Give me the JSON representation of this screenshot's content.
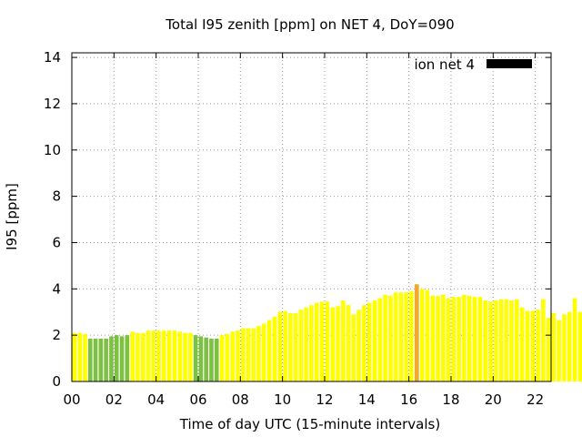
{
  "chart_data": {
    "type": "bar",
    "title": "Total I95 zenith [ppm] on NET 4, DoY=090",
    "xlabel": "Time of day UTC (15-minute intervals)",
    "ylabel": "I95 [ppm]",
    "xlim": [
      0,
      22.75
    ],
    "ylim": [
      0,
      14.2
    ],
    "xticks": [
      0,
      2,
      4,
      6,
      8,
      10,
      12,
      14,
      16,
      18,
      20,
      22
    ],
    "xtick_labels": [
      "00",
      "02",
      "04",
      "06",
      "08",
      "10",
      "12",
      "14",
      "16",
      "18",
      "20",
      "22"
    ],
    "yticks": [
      0,
      2,
      4,
      6,
      8,
      10,
      12,
      14
    ],
    "ytick_labels": [
      "0",
      "2",
      "4",
      "6",
      "8",
      "10",
      "12",
      "14"
    ],
    "grid": true,
    "legend": {
      "label": "ion net 4",
      "color": "#000000",
      "position": "top-right"
    },
    "colors": {
      "green": "#7dc142",
      "yellow": "#ffff00",
      "orange": "#f0a830"
    },
    "series": [
      {
        "values": [
          2.1,
          2.1,
          2.05,
          1.85,
          1.85,
          1.85,
          1.85,
          1.95,
          2.0,
          1.95,
          2.0,
          2.15,
          2.1,
          2.1,
          2.2,
          2.2,
          2.2,
          2.2,
          2.2,
          2.2,
          2.15,
          2.1,
          2.1,
          2.0,
          1.95,
          1.9,
          1.85,
          1.85,
          2.0,
          2.05,
          2.15,
          2.2,
          2.3,
          2.3,
          2.3,
          2.4,
          2.5,
          2.65,
          2.8,
          3.0,
          3.05,
          2.95,
          2.95,
          3.1,
          3.2,
          3.3,
          3.4,
          3.45,
          3.45,
          3.2,
          3.25,
          3.5,
          3.3,
          2.9,
          3.1,
          3.3,
          3.4,
          3.5,
          3.6,
          3.75,
          3.7,
          3.85,
          3.85,
          3.85,
          3.9,
          4.2,
          4.0,
          3.95,
          3.7,
          3.7,
          3.75,
          3.6,
          3.65,
          3.65,
          3.75,
          3.7,
          3.65,
          3.65,
          3.5,
          3.45,
          3.5,
          3.55,
          3.55,
          3.5,
          3.55,
          3.2,
          3.05,
          3.05,
          3.1,
          3.55,
          2.75,
          2.95,
          2.65,
          2.9,
          3.0,
          3.6,
          3.0
        ],
        "color_class": [
          "y",
          "y",
          "y",
          "g",
          "g",
          "g",
          "g",
          "g",
          "g",
          "g",
          "g",
          "y",
          "y",
          "y",
          "y",
          "y",
          "y",
          "y",
          "y",
          "y",
          "y",
          "y",
          "y",
          "g",
          "g",
          "g",
          "g",
          "g",
          "y",
          "y",
          "y",
          "y",
          "y",
          "y",
          "y",
          "y",
          "y",
          "y",
          "y",
          "y",
          "y",
          "y",
          "y",
          "y",
          "y",
          "y",
          "y",
          "y",
          "y",
          "y",
          "y",
          "y",
          "y",
          "y",
          "y",
          "y",
          "y",
          "y",
          "y",
          "y",
          "y",
          "y",
          "y",
          "y",
          "y",
          "o",
          "y",
          "y",
          "y",
          "y",
          "y",
          "y",
          "y",
          "y",
          "y",
          "y",
          "y",
          "y",
          "y",
          "y",
          "y",
          "y",
          "y",
          "y",
          "y",
          "y",
          "y",
          "y",
          "y",
          "y",
          "y",
          "y",
          "y",
          "y",
          "y",
          "y",
          "y"
        ]
      }
    ]
  }
}
